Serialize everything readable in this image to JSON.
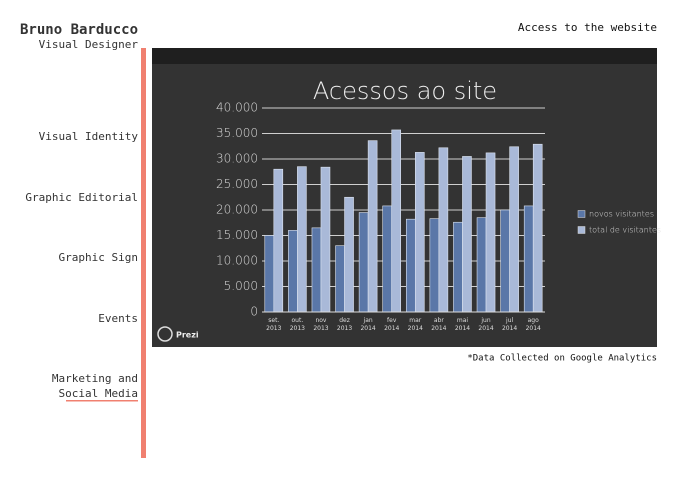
{
  "header": {
    "name": "Bruno Barducco",
    "role": "Visual Designer",
    "link": "Access to the website"
  },
  "nav": [
    "Visual Identity",
    "Graphic Editorial",
    "Graphic Sign",
    "Events",
    "Marketing and",
    "Social Media"
  ],
  "badge": "Prezi",
  "note": "*Data Collected on Google Analytics",
  "chart_data": {
    "type": "bar",
    "title": "Acessos ao site",
    "categories": [
      "set.\n2013",
      "out.\n2013",
      "nov\n2013",
      "dez\n2013",
      "jan\n2014",
      "fev\n2014",
      "mar\n2014",
      "abr\n2014",
      "mai\n2014",
      "jun\n2014",
      "jul\n2014",
      "ago\n2014"
    ],
    "series": [
      {
        "name": "novos visitantes",
        "color": "#5a77a8",
        "values": [
          15000,
          16000,
          16500,
          13000,
          19500,
          20800,
          18200,
          18300,
          17600,
          18500,
          20000,
          20800
        ]
      },
      {
        "name": "total de visitantes",
        "color": "#a9b9d8",
        "values": [
          28000,
          28500,
          28400,
          22500,
          33600,
          35700,
          31300,
          32200,
          30500,
          31200,
          32400,
          32900
        ]
      }
    ],
    "ylim": [
      0,
      40000
    ],
    "yticks": [
      0,
      {
        "value": 5000,
        "label": "5.000"
      },
      {
        "value": 10000,
        "label": "10.000"
      },
      {
        "value": 15000,
        "label": "15.000"
      },
      {
        "value": 20000,
        "label": "20.000"
      },
      {
        "value": 25000,
        "label": "25.000"
      },
      {
        "value": 30000,
        "label": "30.000"
      },
      {
        "value": 35000,
        "label": "35.000"
      },
      {
        "value": 40000,
        "label": "40.000"
      }
    ],
    "grid": true,
    "legend": "right"
  }
}
